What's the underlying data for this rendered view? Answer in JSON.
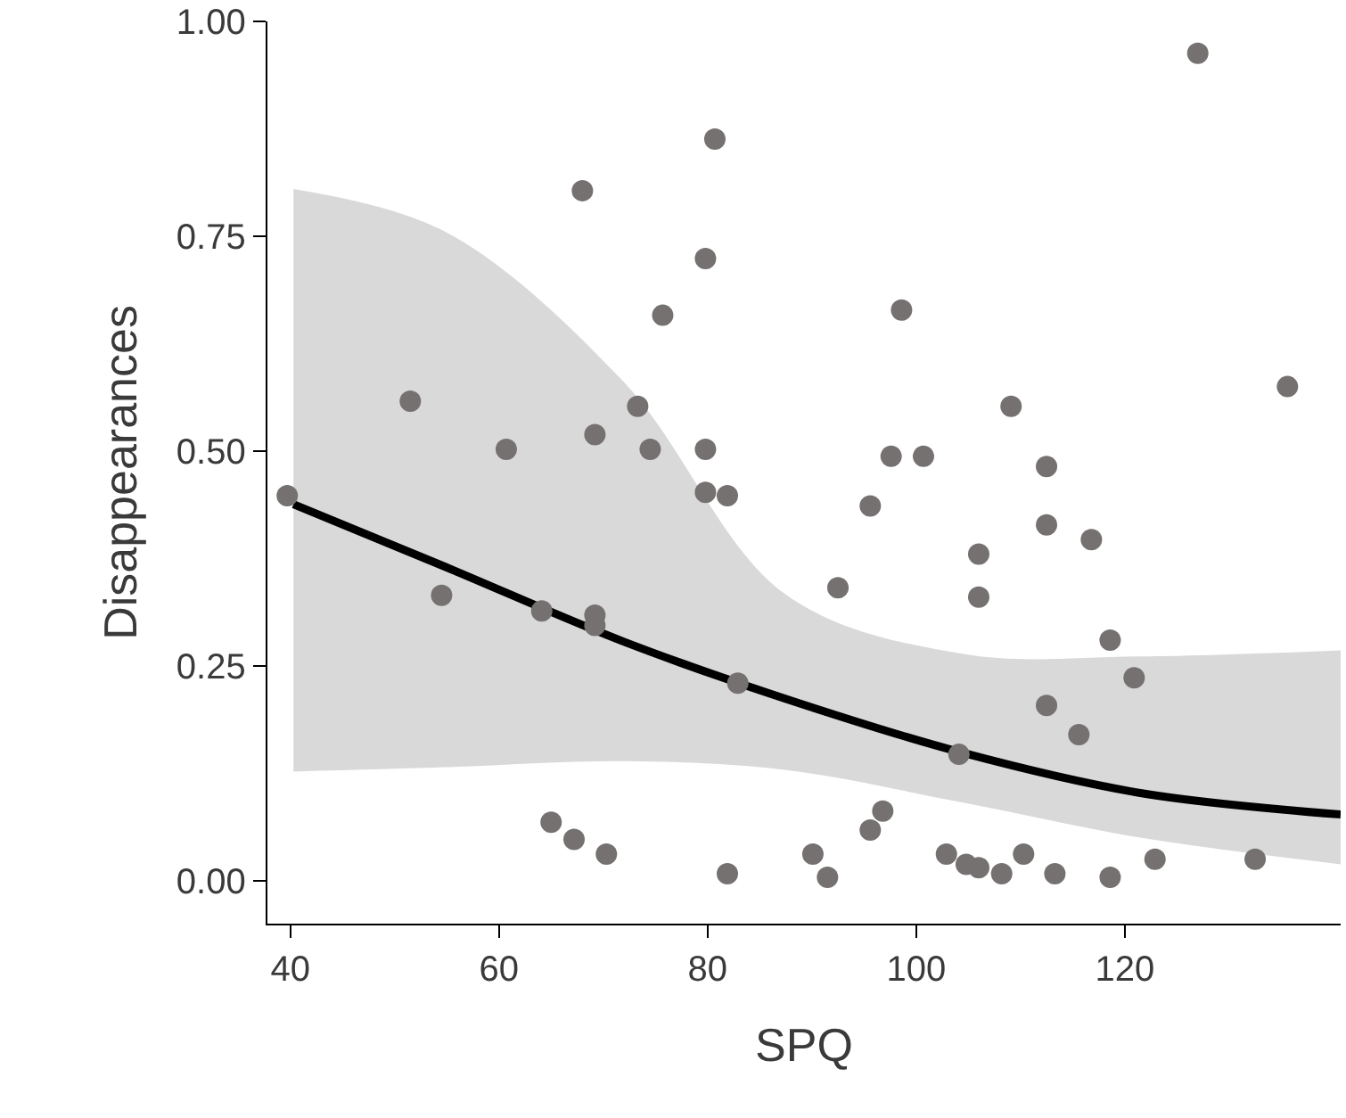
{
  "chart_data": {
    "type": "scatter",
    "xlabel": "SPQ",
    "ylabel": "Disappearances",
    "xlim": [
      37.8,
      140.7
    ],
    "xticks": [
      40,
      60,
      80,
      100,
      120
    ],
    "ylim": [
      -0.05,
      1.0
    ],
    "yticks": [
      {
        "value": 0,
        "label": "0.00"
      },
      {
        "value": 0.25,
        "label": "0.25"
      },
      {
        "value": 0.5,
        "label": "0.50"
      },
      {
        "value": 0.75,
        "label": "0.75"
      },
      {
        "value": 1,
        "label": "1.00"
      }
    ],
    "grid": false,
    "marker": "circle",
    "series": [
      {
        "type": "line",
        "marker": "none",
        "color": "#000000",
        "x": [
          40.3,
          54.9,
          72,
          87.4,
          104.4,
          121.5,
          140.7
        ],
        "values": [
          0.438,
          0.365,
          0.278,
          0.212,
          0.149,
          0.102,
          0.077
        ],
        "lower": [
          0.127,
          0.132,
          0.139,
          0.129,
          0.091,
          0.05,
          0.019
        ],
        "upper": [
          0.805,
          0.755,
          0.58,
          0.334,
          0.264,
          0.261,
          0.268
        ]
      },
      {
        "color": "#767171",
        "x": [
          80.7,
          68.0,
          79.8,
          75.7,
          51.5,
          73.3,
          69.2,
          60.7,
          74.5,
          79.8,
          127.0,
          98.6,
          135.6,
          109.1,
          97.6,
          100.7,
          112.5,
          39.7,
          79.8,
          81.9,
          54.5,
          64.1,
          69.2,
          69.2,
          82.9,
          65.0,
          67.2,
          70.3,
          81.9,
          90.1,
          95.6,
          112.5,
          116.8,
          106.0,
          92.5,
          106.0,
          118.6,
          120.9,
          112.5,
          115.6,
          104.1,
          96.8,
          95.6,
          91.5,
          102.9,
          104.8,
          106.0,
          108.2,
          110.3,
          113.3,
          118.6,
          122.9,
          132.5
        ],
        "values": [
          0.863,
          0.803,
          0.724,
          0.658,
          0.558,
          0.552,
          0.519,
          0.502,
          0.502,
          0.502,
          0.963,
          0.664,
          0.575,
          0.552,
          0.494,
          0.494,
          0.482,
          0.448,
          0.452,
          0.448,
          0.332,
          0.314,
          0.309,
          0.297,
          0.23,
          0.068,
          0.048,
          0.031,
          0.008,
          0.031,
          0.436,
          0.414,
          0.397,
          0.38,
          0.341,
          0.33,
          0.28,
          0.236,
          0.204,
          0.17,
          0.147,
          0.081,
          0.059,
          0.004,
          0.031,
          0.019,
          0.015,
          0.008,
          0.031,
          0.008,
          0.004,
          0.025,
          0.025
        ]
      }
    ]
  }
}
